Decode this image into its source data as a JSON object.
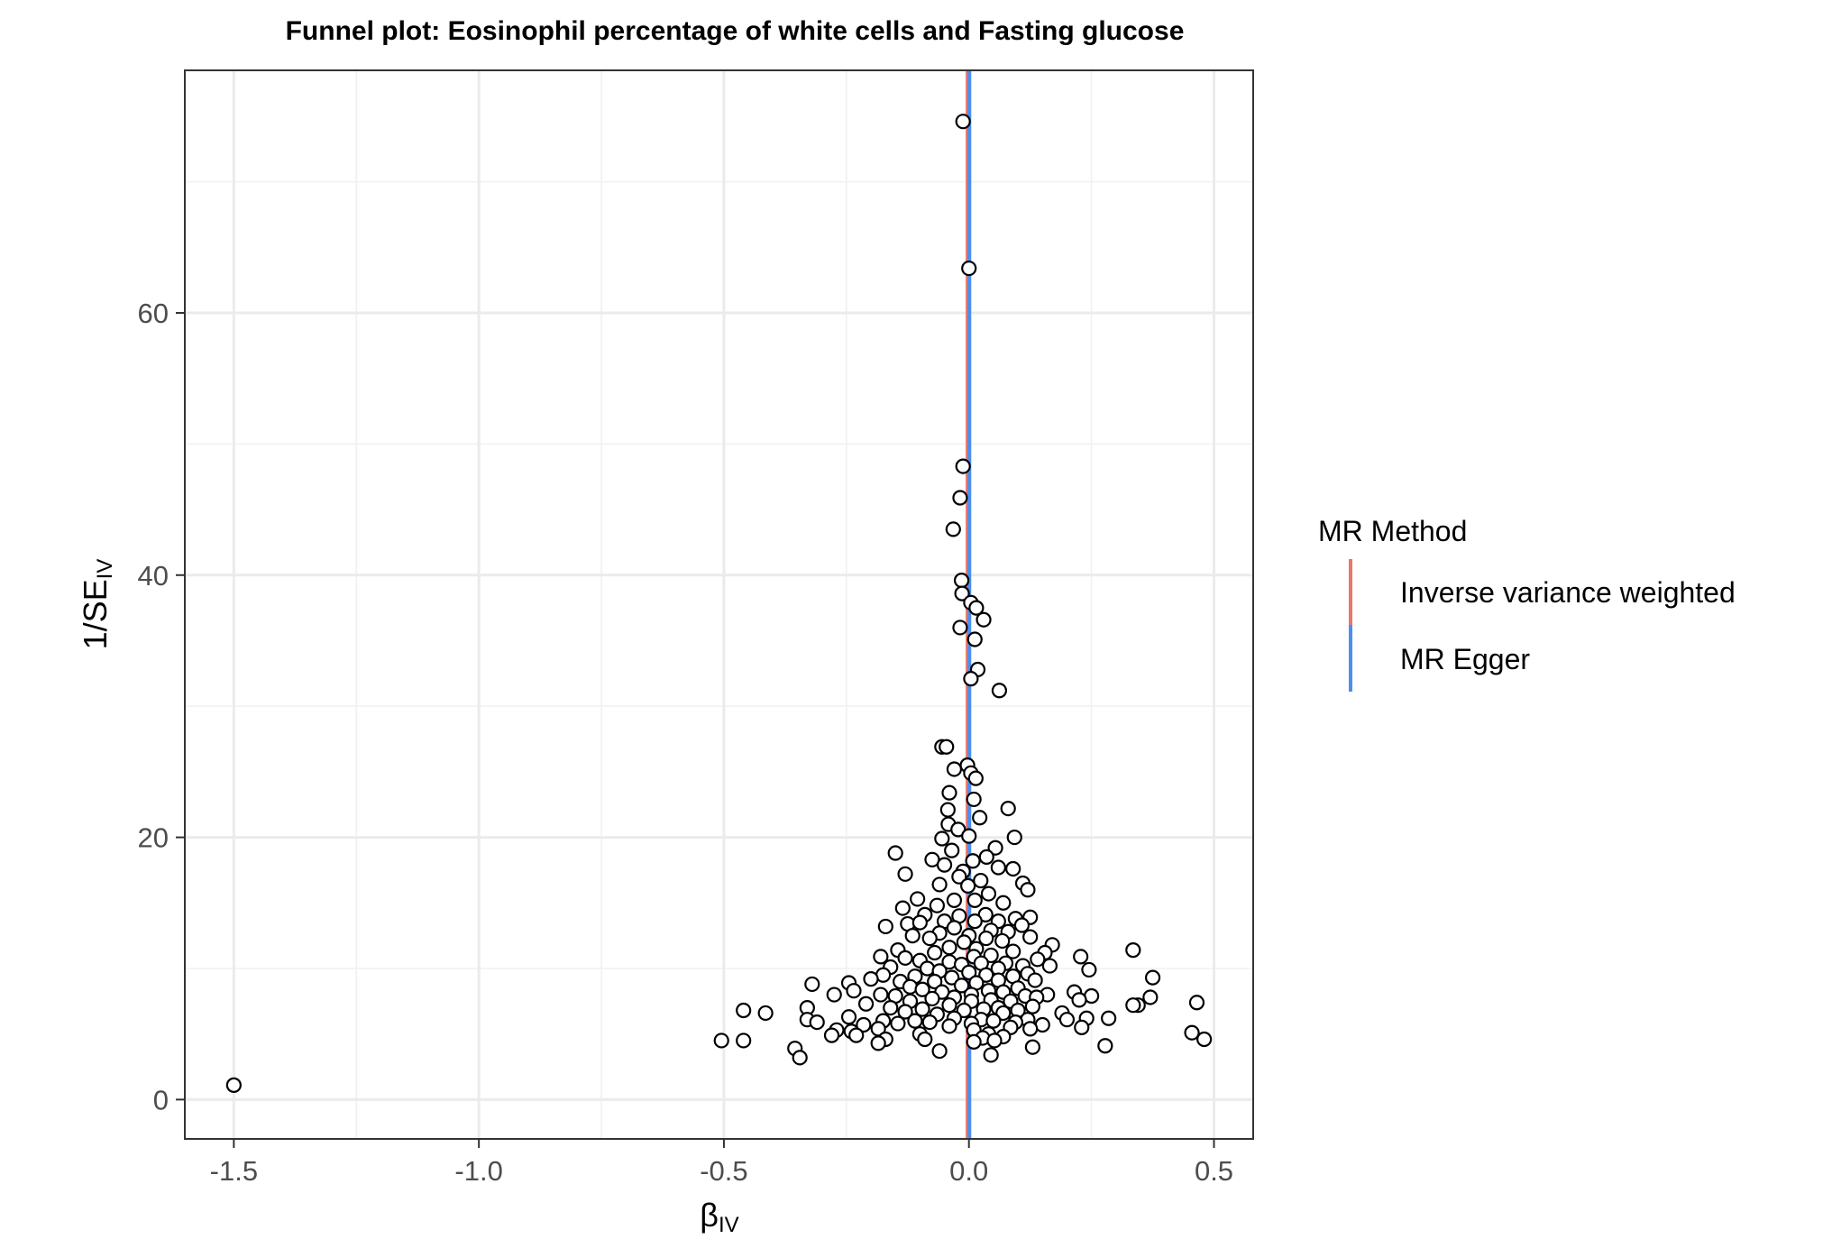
{
  "chart_data": {
    "type": "scatter",
    "title": "Funnel plot: Eosinophil percentage of white cells and Fasting glucose",
    "xlabel": {
      "main": "β",
      "sub": "IV"
    },
    "ylabel": {
      "main": "1/SE",
      "sub": "IV"
    },
    "xlim": [
      -1.6,
      0.58
    ],
    "ylim": [
      -3,
      78.5
    ],
    "x_ticks": [
      -1.5,
      -1.0,
      -0.5,
      0.0,
      0.5
    ],
    "x_tick_labels": [
      "-1.5",
      "-1.0",
      "-0.5",
      "0.0",
      "0.5"
    ],
    "y_ticks": [
      0,
      20,
      40,
      60
    ],
    "y_tick_labels": [
      "0",
      "20",
      "40",
      "60"
    ],
    "grid": true,
    "legend": {
      "title": "MR Method",
      "position": "right",
      "items": [
        {
          "label": "Inverse variance weighted",
          "color": "#F8766D"
        },
        {
          "label": "MR Egger",
          "color": "#619CFF"
        }
      ]
    },
    "lines": [
      {
        "name": "Inverse variance weighted",
        "x": -0.003,
        "color": "#E8776D"
      },
      {
        "name": "MR Egger",
        "x": 0.001,
        "color": "#4A8FF0"
      }
    ],
    "points": [
      [
        -0.012,
        74.6
      ],
      [
        0.0,
        63.4
      ],
      [
        -0.012,
        48.3
      ],
      [
        -0.018,
        45.9
      ],
      [
        -0.032,
        43.5
      ],
      [
        -0.015,
        39.6
      ],
      [
        -0.014,
        38.6
      ],
      [
        0.004,
        37.9
      ],
      [
        0.015,
        37.5
      ],
      [
        0.03,
        36.6
      ],
      [
        -0.018,
        36.0
      ],
      [
        0.012,
        35.1
      ],
      [
        0.018,
        32.8
      ],
      [
        0.004,
        32.1
      ],
      [
        0.062,
        31.2
      ],
      [
        -0.055,
        26.9
      ],
      [
        -0.046,
        26.9
      ],
      [
        -0.003,
        25.5
      ],
      [
        -0.03,
        25.2
      ],
      [
        0.004,
        24.9
      ],
      [
        0.014,
        24.5
      ],
      [
        -0.04,
        23.4
      ],
      [
        0.01,
        22.9
      ],
      [
        -0.043,
        22.1
      ],
      [
        0.08,
        22.2
      ],
      [
        -0.042,
        21.0
      ],
      [
        0.022,
        21.5
      ],
      [
        -0.022,
        20.6
      ],
      [
        -0.055,
        19.9
      ],
      [
        0.0,
        20.1
      ],
      [
        0.093,
        20.0
      ],
      [
        -0.15,
        18.8
      ],
      [
        -0.035,
        19.0
      ],
      [
        0.008,
        18.2
      ],
      [
        -0.075,
        18.3
      ],
      [
        0.054,
        19.2
      ],
      [
        0.036,
        18.5
      ],
      [
        -0.05,
        17.9
      ],
      [
        -0.012,
        17.4
      ],
      [
        0.06,
        17.7
      ],
      [
        0.09,
        17.6
      ],
      [
        -0.13,
        17.2
      ],
      [
        -0.02,
        17.0
      ],
      [
        0.024,
        16.7
      ],
      [
        -0.06,
        16.4
      ],
      [
        0.11,
        16.5
      ],
      [
        0.12,
        16.0
      ],
      [
        -0.002,
        16.3
      ],
      [
        0.04,
        15.7
      ],
      [
        -0.03,
        15.2
      ],
      [
        -0.105,
        15.3
      ],
      [
        0.012,
        15.2
      ],
      [
        0.07,
        15.0
      ],
      [
        -0.065,
        14.8
      ],
      [
        -0.135,
        14.6
      ],
      [
        -0.02,
        14.0
      ],
      [
        0.034,
        14.1
      ],
      [
        0.095,
        13.8
      ],
      [
        0.125,
        13.9
      ],
      [
        -0.09,
        14.1
      ],
      [
        -0.05,
        13.6
      ],
      [
        0.012,
        13.6
      ],
      [
        0.06,
        13.6
      ],
      [
        -0.17,
        13.2
      ],
      [
        -0.125,
        13.4
      ],
      [
        -0.1,
        13.5
      ],
      [
        0.108,
        13.3
      ],
      [
        -0.03,
        13.1
      ],
      [
        0.045,
        12.9
      ],
      [
        0.08,
        12.8
      ],
      [
        -0.06,
        12.7
      ],
      [
        0.0,
        12.5
      ],
      [
        -0.115,
        12.5
      ],
      [
        0.125,
        12.4
      ],
      [
        0.035,
        12.3
      ],
      [
        -0.08,
        12.3
      ],
      [
        0.068,
        12.1
      ],
      [
        -0.01,
        12.0
      ],
      [
        0.17,
        11.8
      ],
      [
        -0.04,
        11.6
      ],
      [
        0.015,
        11.5
      ],
      [
        -0.145,
        11.4
      ],
      [
        0.09,
        11.3
      ],
      [
        0.155,
        11.2
      ],
      [
        -0.07,
        11.2
      ],
      [
        0.045,
        11.0
      ],
      [
        -0.18,
        10.9
      ],
      [
        0.01,
        10.9
      ],
      [
        0.228,
        10.9
      ],
      [
        0.335,
        11.4
      ],
      [
        -0.13,
        10.8
      ],
      [
        0.14,
        10.7
      ],
      [
        -0.1,
        10.6
      ],
      [
        -0.04,
        10.5
      ],
      [
        0.075,
        10.4
      ],
      [
        0.025,
        10.4
      ],
      [
        -0.015,
        10.3
      ],
      [
        0.11,
        10.2
      ],
      [
        0.165,
        10.2
      ],
      [
        -0.16,
        10.1
      ],
      [
        0.06,
        10.0
      ],
      [
        -0.085,
        10.0
      ],
      [
        0.245,
        9.9
      ],
      [
        -0.06,
        9.8
      ],
      [
        0.0,
        9.7
      ],
      [
        0.12,
        9.6
      ],
      [
        -0.175,
        9.5
      ],
      [
        0.035,
        9.5
      ],
      [
        -0.11,
        9.4
      ],
      [
        0.09,
        9.4
      ],
      [
        -0.035,
        9.3
      ],
      [
        0.375,
        9.3
      ],
      [
        -0.2,
        9.2
      ],
      [
        0.06,
        9.1
      ],
      [
        0.135,
        9.1
      ],
      [
        -0.14,
        9.0
      ],
      [
        -0.07,
        9.0
      ],
      [
        -0.32,
        8.8
      ],
      [
        -0.245,
        8.9
      ],
      [
        0.015,
        8.9
      ],
      [
        -0.015,
        8.7
      ],
      [
        -0.12,
        8.6
      ],
      [
        0.1,
        8.5
      ],
      [
        -0.095,
        8.4
      ],
      [
        0.04,
        8.3
      ],
      [
        -0.235,
        8.3
      ],
      [
        0.215,
        8.2
      ],
      [
        -0.055,
        8.2
      ],
      [
        0.07,
        8.2
      ],
      [
        0.16,
        8.0
      ],
      [
        -0.18,
        8.0
      ],
      [
        0.005,
        8.0
      ],
      [
        -0.275,
        8.0
      ],
      [
        -0.15,
        7.9
      ],
      [
        0.25,
        7.9
      ],
      [
        0.115,
        7.9
      ],
      [
        -0.03,
        7.8
      ],
      [
        0.37,
        7.8
      ],
      [
        0.138,
        7.8
      ],
      [
        -0.075,
        7.7
      ],
      [
        0.045,
        7.6
      ],
      [
        0.225,
        7.6
      ],
      [
        0.085,
        7.5
      ],
      [
        -0.12,
        7.5
      ],
      [
        0.005,
        7.5
      ],
      [
        0.465,
        7.4
      ],
      [
        -0.21,
        7.3
      ],
      [
        0.345,
        7.2
      ],
      [
        0.335,
        7.2
      ],
      [
        -0.04,
        7.2
      ],
      [
        0.13,
        7.1
      ],
      [
        -0.33,
        7.0
      ],
      [
        -0.16,
        7.0
      ],
      [
        0.06,
        7.0
      ],
      [
        -0.095,
        6.9
      ],
      [
        0.03,
        6.9
      ],
      [
        0.1,
        6.8
      ],
      [
        -0.01,
        6.8
      ],
      [
        -0.46,
        6.8
      ],
      [
        -0.13,
        6.7
      ],
      [
        -0.415,
        6.6
      ],
      [
        0.19,
        6.6
      ],
      [
        0.07,
        6.6
      ],
      [
        -0.065,
        6.5
      ],
      [
        -0.245,
        6.3
      ],
      [
        0.24,
        6.2
      ],
      [
        0.285,
        6.2
      ],
      [
        -0.03,
        6.2
      ],
      [
        -0.33,
        6.1
      ],
      [
        0.025,
        6.1
      ],
      [
        0.2,
        6.1
      ],
      [
        0.12,
        6.1
      ],
      [
        -0.175,
        6.0
      ],
      [
        -0.11,
        6.0
      ],
      [
        -0.31,
        5.9
      ],
      [
        0.05,
        6.0
      ],
      [
        0.095,
        5.9
      ],
      [
        -0.08,
        5.9
      ],
      [
        -0.145,
        5.8
      ],
      [
        0.005,
        5.8
      ],
      [
        -0.215,
        5.7
      ],
      [
        0.15,
        5.7
      ],
      [
        -0.04,
        5.6
      ],
      [
        0.23,
        5.5
      ],
      [
        0.085,
        5.5
      ],
      [
        -0.185,
        5.4
      ],
      [
        0.125,
        5.4
      ],
      [
        -0.27,
        5.3
      ],
      [
        0.01,
        5.3
      ],
      [
        -0.24,
        5.2
      ],
      [
        0.455,
        5.1
      ],
      [
        -0.1,
        5.0
      ],
      [
        0.04,
        5.0
      ],
      [
        -0.23,
        4.9
      ],
      [
        -0.28,
        4.9
      ],
      [
        0.07,
        4.8
      ],
      [
        0.028,
        4.7
      ],
      [
        -0.17,
        4.6
      ],
      [
        -0.09,
        4.6
      ],
      [
        0.48,
        4.6
      ],
      [
        -0.505,
        4.5
      ],
      [
        -0.46,
        4.5
      ],
      [
        0.052,
        4.5
      ],
      [
        0.01,
        4.4
      ],
      [
        -0.185,
        4.3
      ],
      [
        0.278,
        4.1
      ],
      [
        0.13,
        4.0
      ],
      [
        -0.355,
        3.9
      ],
      [
        -0.06,
        3.7
      ],
      [
        0.045,
        3.4
      ],
      [
        -0.345,
        3.2
      ],
      [
        -1.5,
        1.1
      ]
    ]
  }
}
